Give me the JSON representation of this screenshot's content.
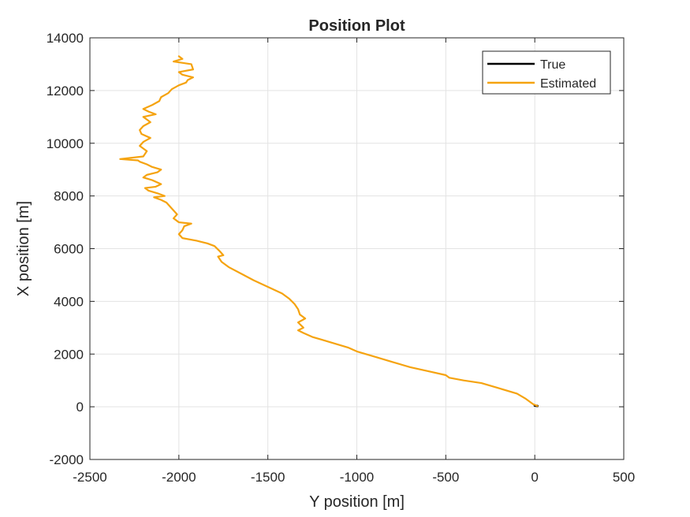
{
  "chart_data": {
    "type": "line",
    "title": "Position Plot",
    "xlabel": "Y position [m]",
    "ylabel": "X position [m]",
    "xlim": [
      -2500,
      500
    ],
    "ylim": [
      -2000,
      14000
    ],
    "xticks": [
      -2500,
      -2000,
      -1500,
      -1000,
      -500,
      0,
      500
    ],
    "yticks": [
      -2000,
      0,
      2000,
      4000,
      6000,
      8000,
      10000,
      12000,
      14000
    ],
    "xtick_labels": [
      "-2500",
      "-2000",
      "-1500",
      "-1000",
      "-500",
      "0",
      "500"
    ],
    "ytick_labels": [
      "-2000",
      "0",
      "2000",
      "4000",
      "6000",
      "8000",
      "10000",
      "12000",
      "14000"
    ],
    "grid": true,
    "legend_position": "top-right",
    "series": [
      {
        "name": "True",
        "color": "#000000",
        "x": [
          15,
          10,
          5,
          0
        ],
        "y": [
          30,
          35,
          40,
          45
        ]
      },
      {
        "name": "Estimated",
        "color": "#f5a30f",
        "x": [
          15,
          -10,
          -50,
          -100,
          -200,
          -300,
          -400,
          -480,
          -500,
          -600,
          -700,
          -800,
          -900,
          -1000,
          -1050,
          -1100,
          -1150,
          -1200,
          -1250,
          -1300,
          -1330,
          -1300,
          -1330,
          -1290,
          -1320,
          -1330,
          -1350,
          -1380,
          -1420,
          -1500,
          -1580,
          -1650,
          -1720,
          -1760,
          -1780,
          -1750,
          -1770,
          -1800,
          -1840,
          -1900,
          -1980,
          -2000,
          -1980,
          -1970,
          -1930,
          -2000,
          -2030,
          -2010,
          -2030,
          -2050,
          -2070,
          -2100,
          -2140,
          -2080,
          -2120,
          -2170,
          -2190,
          -2130,
          -2100,
          -2150,
          -2200,
          -2180,
          -2120,
          -2100,
          -2150,
          -2180,
          -2220,
          -2230,
          -2330,
          -2200,
          -2180,
          -2220,
          -2200,
          -2160,
          -2210,
          -2220,
          -2200,
          -2160,
          -2180,
          -2200,
          -2130,
          -2170,
          -2200,
          -2150,
          -2110,
          -2100,
          -2060,
          -2040,
          -2000,
          -1960,
          -1950,
          -1920,
          -1980,
          -2000,
          -1920,
          -1930,
          -2030,
          -1980,
          -2000
        ],
        "y": [
          30,
          100,
          300,
          500,
          700,
          900,
          1000,
          1100,
          1200,
          1350,
          1500,
          1700,
          1900,
          2100,
          2250,
          2350,
          2450,
          2550,
          2650,
          2800,
          2900,
          3000,
          3200,
          3350,
          3500,
          3700,
          3900,
          4100,
          4300,
          4550,
          4800,
          5050,
          5300,
          5500,
          5700,
          5750,
          5900,
          6100,
          6200,
          6300,
          6400,
          6550,
          6700,
          6850,
          6950,
          7000,
          7150,
          7300,
          7450,
          7600,
          7750,
          7850,
          7950,
          8000,
          8100,
          8200,
          8300,
          8350,
          8450,
          8600,
          8700,
          8800,
          8900,
          9000,
          9100,
          9200,
          9300,
          9350,
          9400,
          9500,
          9700,
          9900,
          10050,
          10200,
          10350,
          10500,
          10650,
          10800,
          10900,
          11000,
          11100,
          11200,
          11300,
          11450,
          11600,
          11750,
          11900,
          12050,
          12200,
          12300,
          12400,
          12500,
          12600,
          12700,
          12800,
          13000,
          13100,
          13200,
          13300
        ]
      }
    ]
  }
}
